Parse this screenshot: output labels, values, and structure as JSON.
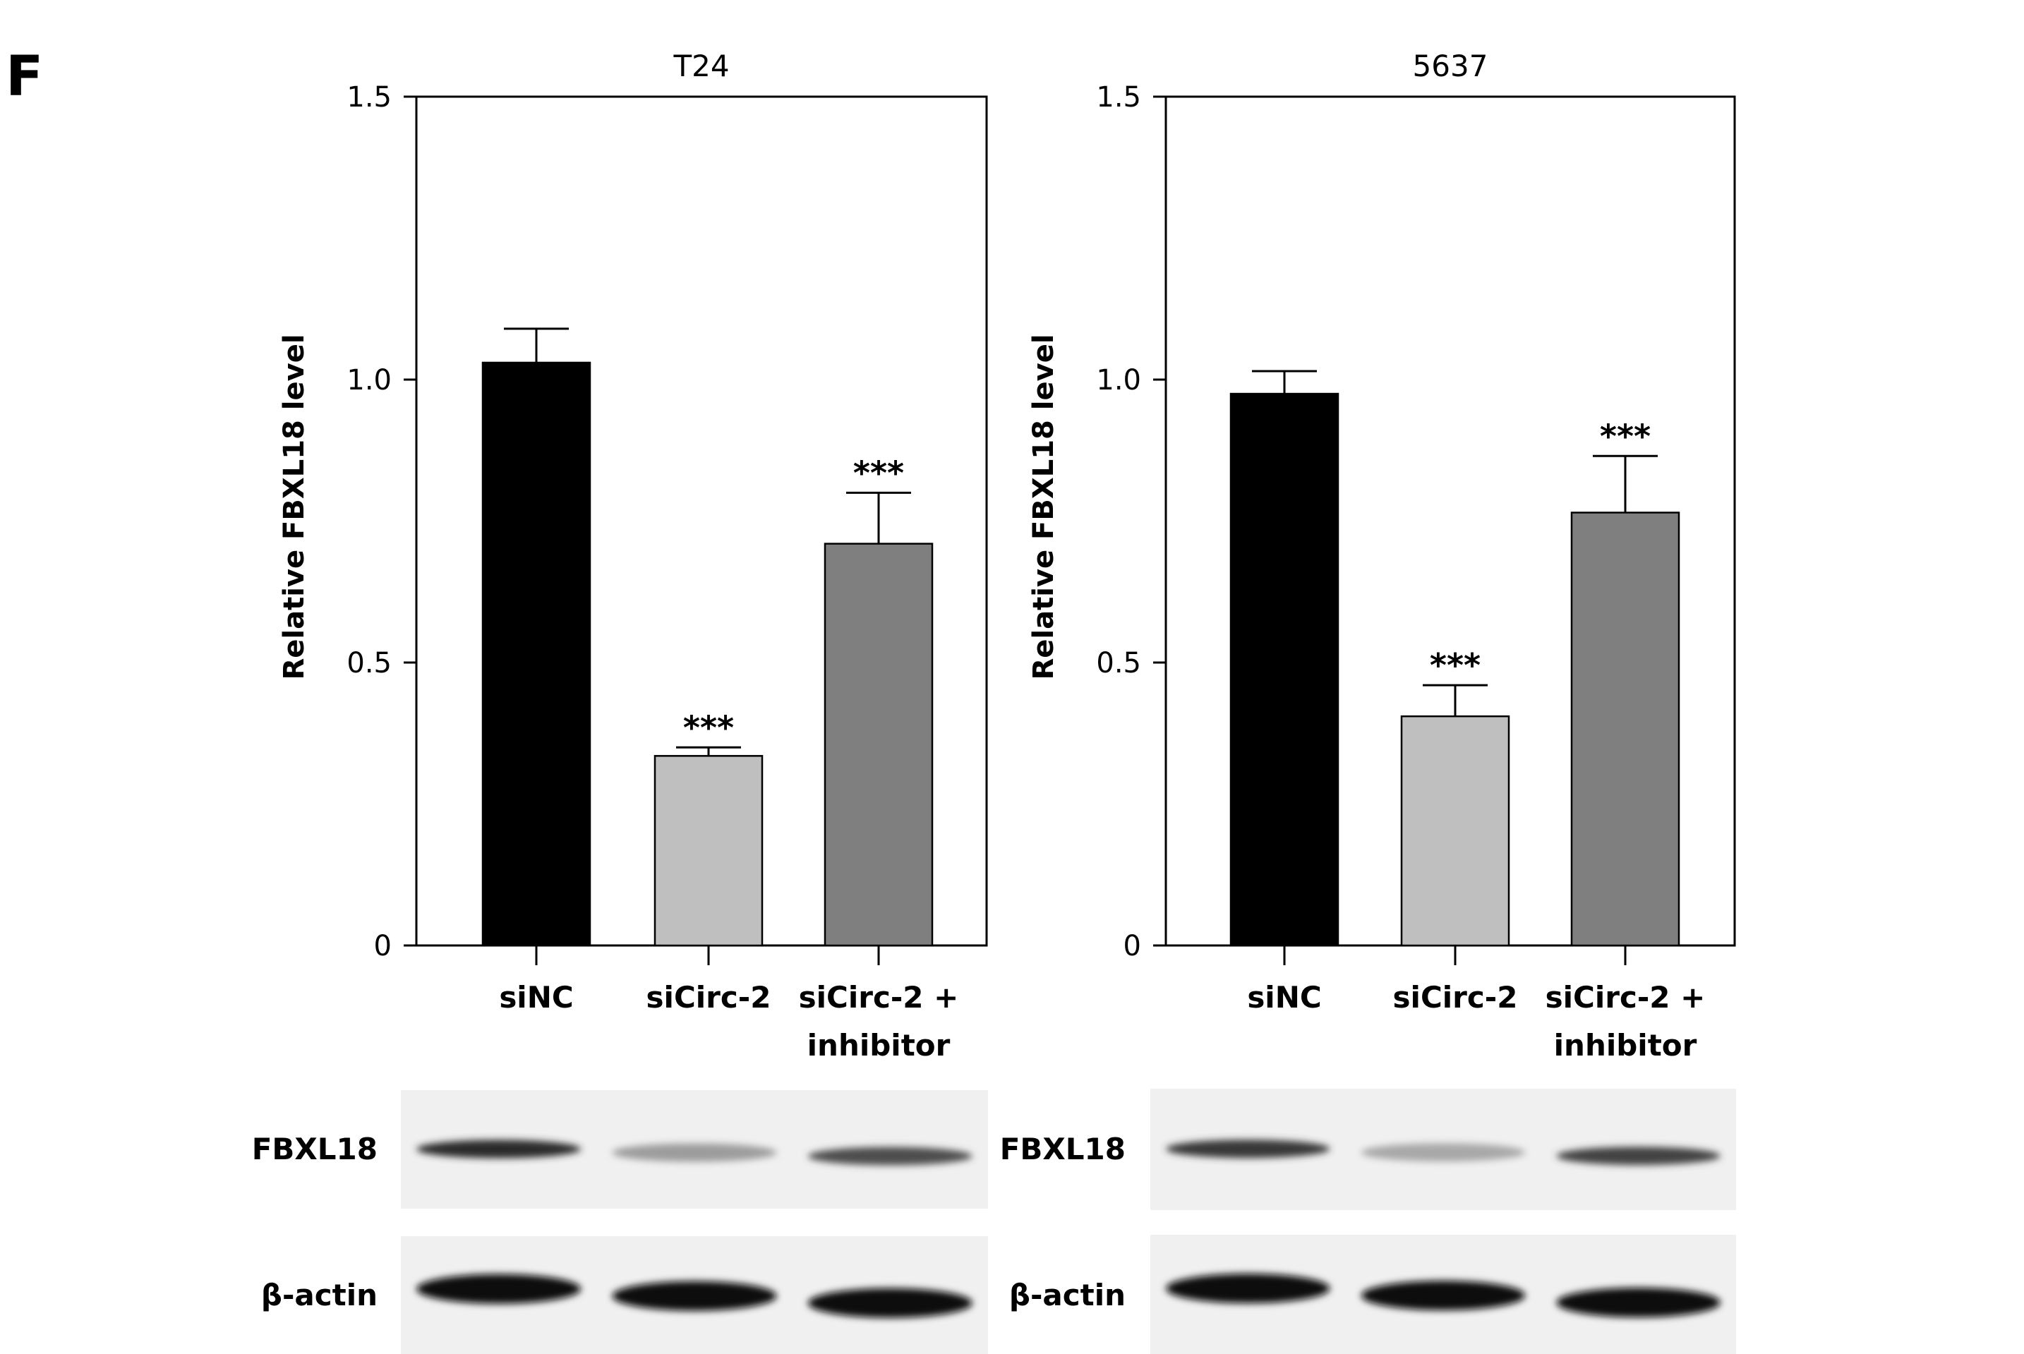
{
  "panel_label": "F",
  "colors": {
    "siNC": "#000000",
    "siCirc-2": "#bfbfbf",
    "siCirc-2 + inhibitor": "#7f7f7f",
    "blot_background": "#f0f0f0"
  },
  "chart_data": [
    {
      "type": "bar",
      "title": "T24",
      "ylabel": "Relative FBXL18 level",
      "xlabel": "",
      "ylim": [
        0,
        1.5
      ],
      "yticks": [
        "0",
        "0.5",
        "1.0",
        "1.5"
      ],
      "ytick_values": [
        0,
        0.5,
        1.0,
        1.5
      ],
      "categories": [
        {
          "line1": "siNC",
          "line2": ""
        },
        {
          "line1": "siCirc-2",
          "line2": ""
        },
        {
          "line1": "siCirc-2 +",
          "line2": "inhibitor"
        }
      ],
      "values": [
        1.03,
        0.335,
        0.71
      ],
      "errors": [
        0.06,
        0.015,
        0.09
      ],
      "significance": [
        "",
        "***",
        "***"
      ],
      "grid": false,
      "blot": {
        "labels": [
          "FBXL18",
          "β-actin"
        ],
        "band_intensity": [
          [
            0.85,
            0.35,
            0.7
          ],
          [
            1.0,
            1.0,
            1.0
          ]
        ]
      }
    },
    {
      "type": "bar",
      "title": "5637",
      "ylabel": "Relative FBXL18 level",
      "xlabel": "",
      "ylim": [
        0,
        1.5
      ],
      "yticks": [
        "0",
        "0.5",
        "1.0",
        "1.5"
      ],
      "ytick_values": [
        0,
        0.5,
        1.0,
        1.5
      ],
      "categories": [
        {
          "line1": "siNC",
          "line2": ""
        },
        {
          "line1": "siCirc-2",
          "line2": ""
        },
        {
          "line1": "siCirc-2 +",
          "line2": "inhibitor"
        }
      ],
      "values": [
        0.975,
        0.405,
        0.765
      ],
      "errors": [
        0.04,
        0.055,
        0.1
      ],
      "significance": [
        "",
        "***",
        "***"
      ],
      "grid": false,
      "blot": {
        "labels": [
          "FBXL18",
          "β-actin"
        ],
        "band_intensity": [
          [
            0.8,
            0.3,
            0.75
          ],
          [
            1.0,
            1.0,
            1.0
          ]
        ]
      }
    }
  ]
}
